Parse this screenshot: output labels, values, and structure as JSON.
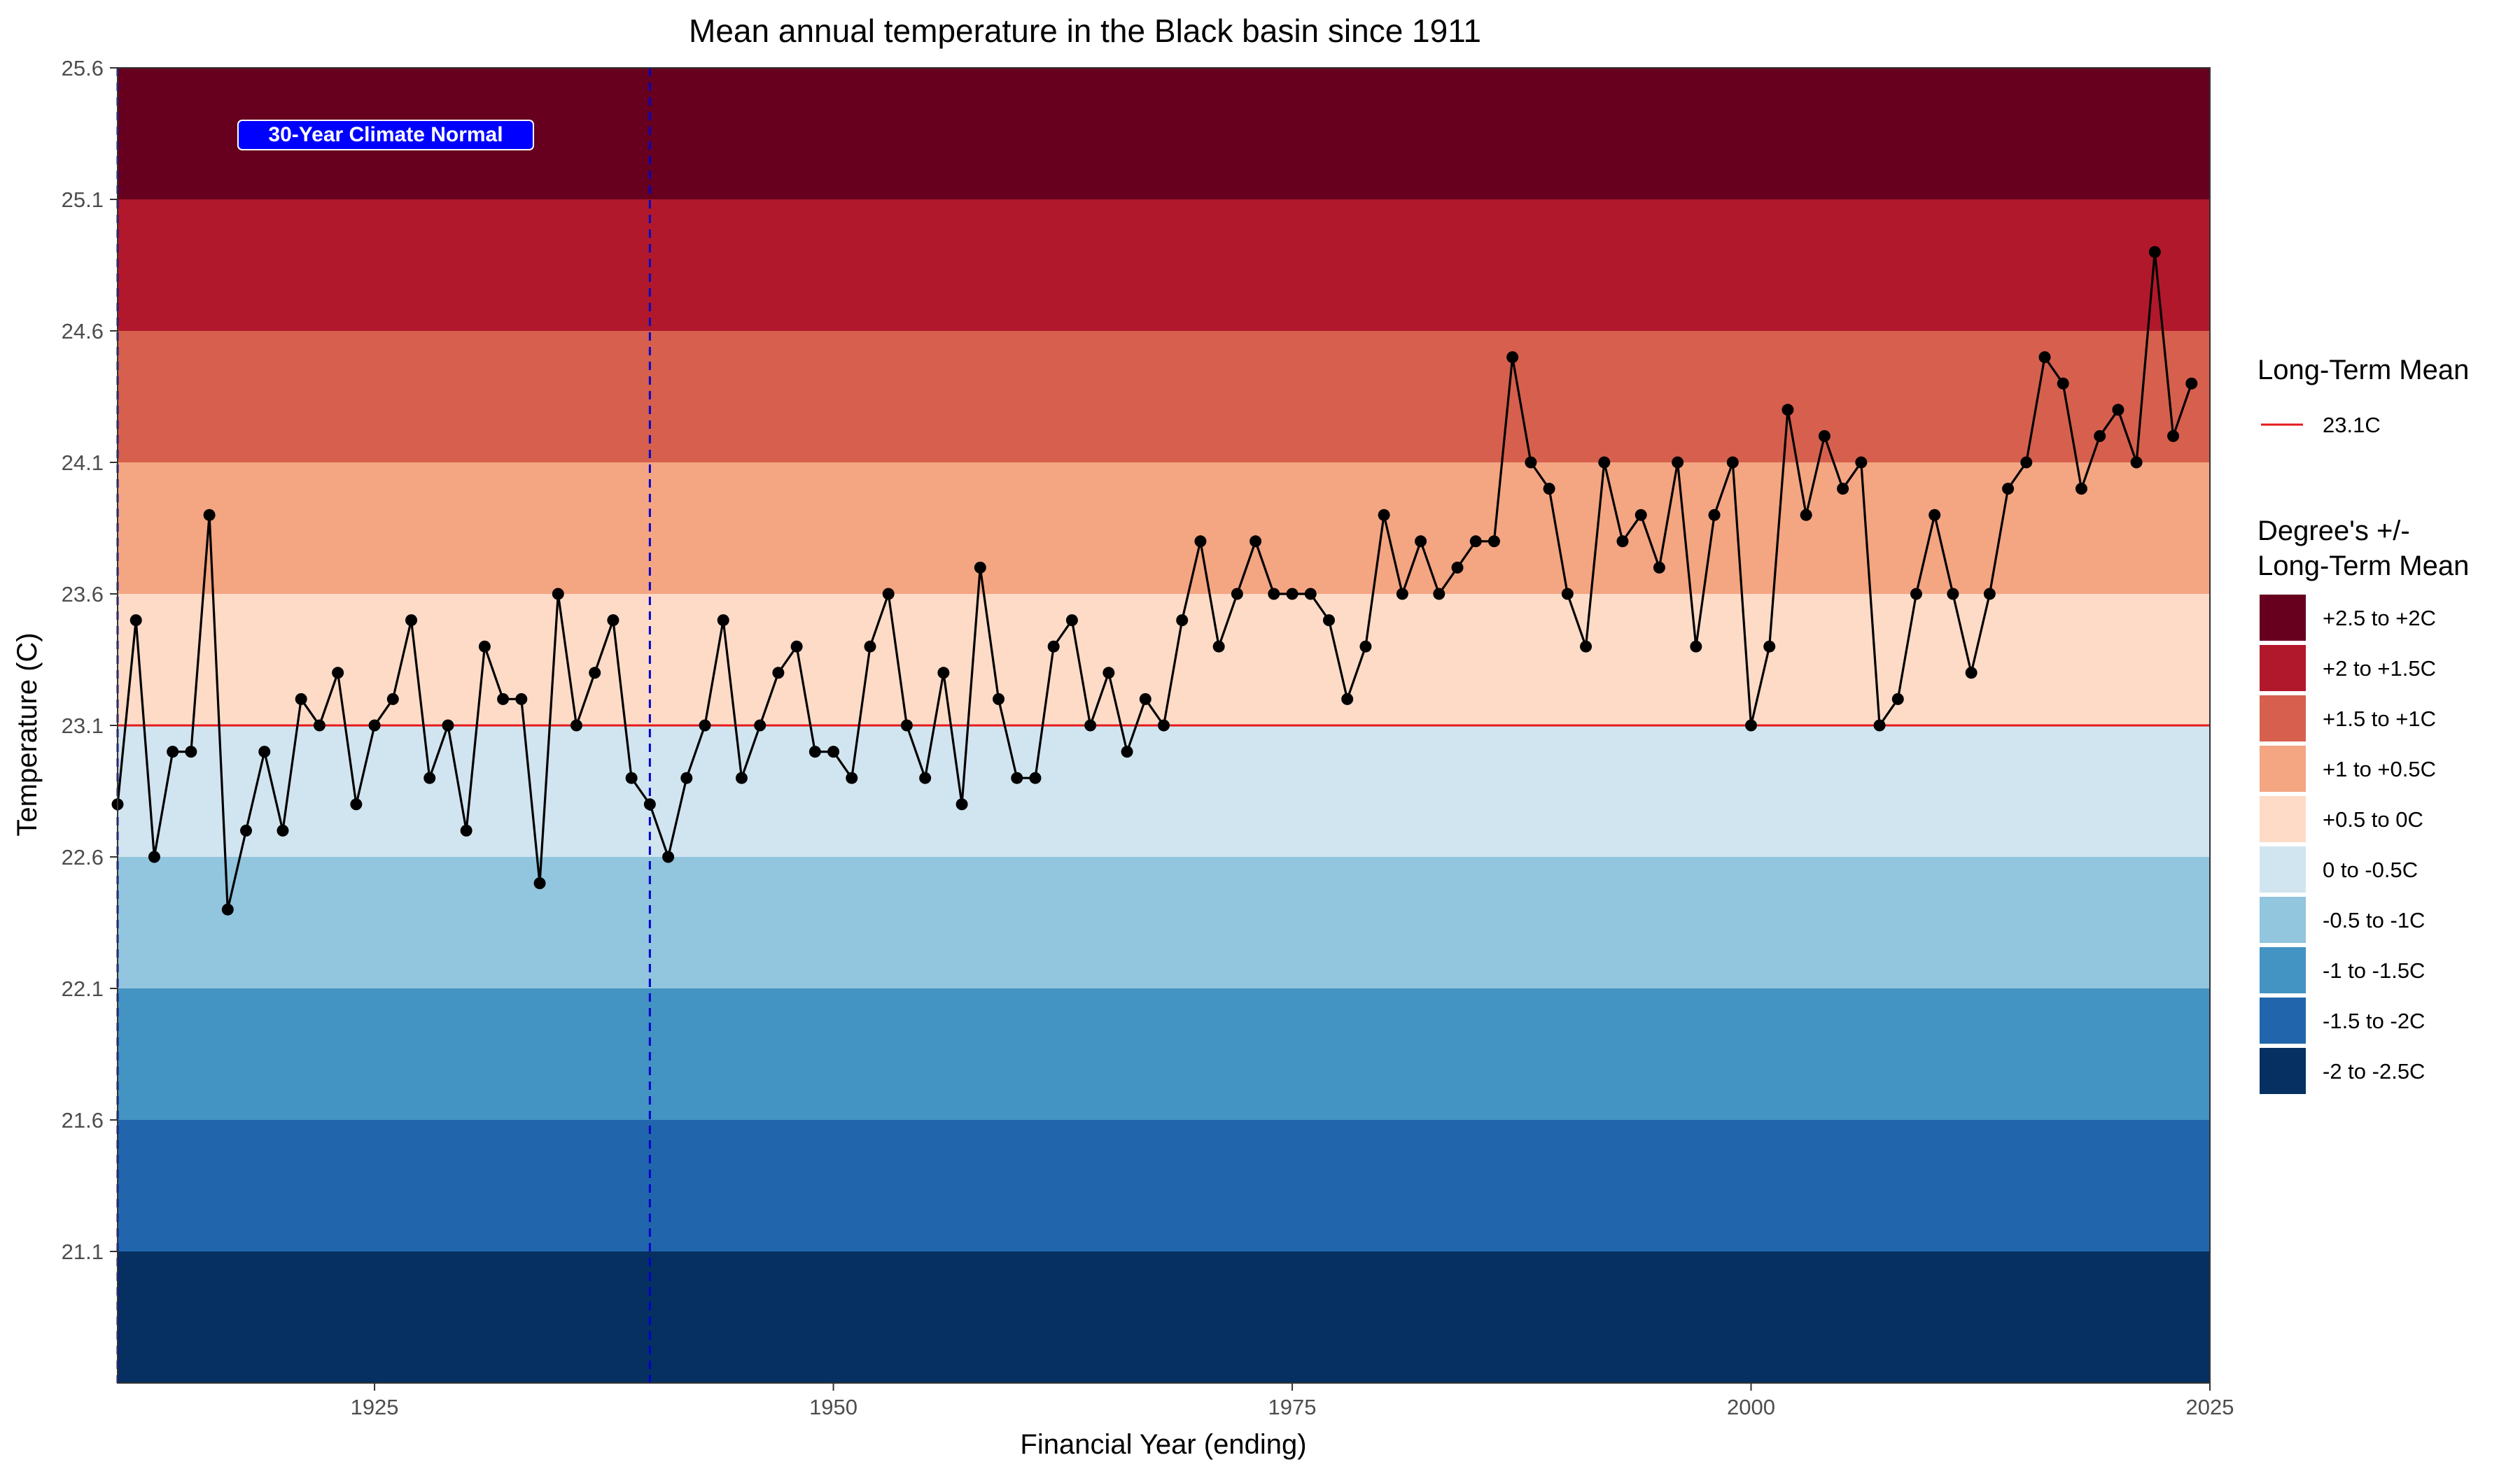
{
  "chart_data": {
    "type": "line",
    "title": "Mean annual temperature in the Black basin since 1911",
    "xlabel": "Financial Year (ending)",
    "ylabel": "Temperature (C)",
    "xlim": [
      1911,
      2025
    ],
    "ylim": [
      20.6,
      25.6
    ],
    "x_ticks": [
      1925,
      1950,
      1975,
      2000,
      2025
    ],
    "y_ticks": [
      21.1,
      21.6,
      22.1,
      22.6,
      23.1,
      23.6,
      24.1,
      24.6,
      25.1,
      25.6
    ],
    "grid": false,
    "long_term_mean": {
      "value": 23.1,
      "label": "23.1C",
      "color": "#e41a1c"
    },
    "climate_normal": {
      "start": 1911,
      "end": 1940,
      "label": "30-Year Climate Normal",
      "color": "#0000cc"
    },
    "bands": [
      {
        "from": 25.1,
        "to": 25.6,
        "label": "+2.5 to +2C",
        "color": "#67001f"
      },
      {
        "from": 24.6,
        "to": 25.1,
        "label": "+2 to +1.5C",
        "color": "#b2182b"
      },
      {
        "from": 24.1,
        "to": 24.6,
        "label": "+1.5 to +1C",
        "color": "#d6604d"
      },
      {
        "from": 23.6,
        "to": 24.1,
        "label": "+1 to +0.5C",
        "color": "#f4a582"
      },
      {
        "from": 23.1,
        "to": 23.6,
        "label": "+0.5 to 0C",
        "color": "#fddbc7"
      },
      {
        "from": 22.6,
        "to": 23.1,
        "label": "0 to -0.5C",
        "color": "#d1e5f0"
      },
      {
        "from": 22.1,
        "to": 22.6,
        "label": "-0.5 to -1C",
        "color": "#92c5de"
      },
      {
        "from": 21.6,
        "to": 22.1,
        "label": "-1 to -1.5C",
        "color": "#4393c3"
      },
      {
        "from": 21.1,
        "to": 21.6,
        "label": "-1.5 to -2C",
        "color": "#2166ac"
      },
      {
        "from": 20.6,
        "to": 21.1,
        "label": "-2 to -2.5C",
        "color": "#053061"
      }
    ],
    "legend": {
      "placement": "right",
      "mean_title": "Long-Term Mean",
      "bands_title_line1": "Degree's +/-",
      "bands_title_line2": "Long-Term Mean"
    },
    "series": [
      {
        "x": [
          1911,
          1912,
          1913,
          1914,
          1915,
          1916,
          1917,
          1918,
          1919,
          1920,
          1921,
          1922,
          1923,
          1924,
          1925,
          1926,
          1927,
          1928,
          1929,
          1930,
          1931,
          1932,
          1933,
          1934,
          1935,
          1936,
          1937,
          1938,
          1939,
          1940,
          1941,
          1942,
          1943,
          1944,
          1945,
          1946,
          1947,
          1948,
          1949,
          1950,
          1951,
          1952,
          1953,
          1954,
          1955,
          1956,
          1957,
          1958,
          1959,
          1960,
          1961,
          1962,
          1963,
          1964,
          1965,
          1966,
          1967,
          1968,
          1969,
          1970,
          1971,
          1972,
          1973,
          1974,
          1975,
          1976,
          1977,
          1978,
          1979,
          1980,
          1981,
          1982,
          1983,
          1984,
          1985,
          1986,
          1987,
          1988,
          1989,
          1990,
          1991,
          1992,
          1993,
          1994,
          1995,
          1996,
          1997,
          1998,
          1999,
          2000,
          2001,
          2002,
          2003,
          2004,
          2005,
          2006,
          2007,
          2008,
          2009,
          2010,
          2011,
          2012,
          2013,
          2014,
          2015,
          2016,
          2017,
          2018,
          2019,
          2020,
          2021,
          2022,
          2023,
          2024
        ],
        "values": [
          22.8,
          23.5,
          22.6,
          23.0,
          23.0,
          23.9,
          22.4,
          22.7,
          23.0,
          22.7,
          23.2,
          23.1,
          23.3,
          22.8,
          23.1,
          23.2,
          23.5,
          22.9,
          23.1,
          22.7,
          23.4,
          23.2,
          23.2,
          22.5,
          23.6,
          23.1,
          23.3,
          23.5,
          22.9,
          22.8,
          22.6,
          22.9,
          23.1,
          23.5,
          22.9,
          23.1,
          23.3,
          23.4,
          23.0,
          23.0,
          22.9,
          23.4,
          23.6,
          23.1,
          22.9,
          23.3,
          22.8,
          23.7,
          23.2,
          22.9,
          22.9,
          23.4,
          23.5,
          23.1,
          23.3,
          23.0,
          23.2,
          23.1,
          23.5,
          23.8,
          23.4,
          23.6,
          23.8,
          23.6,
          23.6,
          23.6,
          23.5,
          23.2,
          23.4,
          23.9,
          23.6,
          23.8,
          23.6,
          23.7,
          23.8,
          23.8,
          24.5,
          24.1,
          24.0,
          23.6,
          23.4,
          24.1,
          23.8,
          23.9,
          23.7,
          24.1,
          23.4,
          23.9,
          24.1,
          23.1,
          23.4,
          24.3,
          23.9,
          24.2,
          24.0,
          24.1,
          23.1,
          23.2,
          23.6,
          23.9,
          23.6,
          23.3,
          23.6,
          24.0,
          24.1,
          24.5,
          24.4,
          24.0,
          24.2,
          24.3,
          24.1,
          24.9,
          24.2,
          24.4
        ]
      }
    ]
  }
}
